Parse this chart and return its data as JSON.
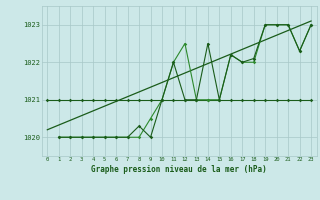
{
  "title": "Graphe pression niveau de la mer (hPa)",
  "bg_color": "#cce8e8",
  "grid_color": "#a8c8c8",
  "line_color_dark": "#1a5c1a",
  "line_color_mid": "#2d8a2d",
  "xlim": [
    -0.5,
    23.5
  ],
  "ylim": [
    1019.5,
    1023.5
  ],
  "yticks": [
    1020,
    1021,
    1022,
    1023
  ],
  "xticks": [
    0,
    1,
    2,
    3,
    4,
    5,
    6,
    7,
    8,
    9,
    10,
    11,
    12,
    13,
    14,
    15,
    16,
    17,
    18,
    19,
    20,
    21,
    22,
    23
  ],
  "series_flat_x": [
    0,
    1,
    2,
    3,
    4,
    5,
    6,
    7,
    8,
    9,
    10,
    11,
    12,
    13,
    14,
    15,
    16,
    17,
    18,
    19,
    20,
    21,
    22,
    23
  ],
  "series_flat_y": [
    1021,
    1021,
    1021,
    1021,
    1021,
    1021,
    1021,
    1021,
    1021,
    1021,
    1021,
    1021,
    1021,
    1021,
    1021,
    1021,
    1021,
    1021,
    1021,
    1021,
    1021,
    1021,
    1021,
    1021
  ],
  "series_volatile_x": [
    1,
    2,
    3,
    4,
    5,
    6,
    7,
    8,
    9,
    10,
    11,
    12,
    13,
    14,
    15,
    16,
    17,
    18,
    19,
    20,
    21,
    22,
    23
  ],
  "series_volatile_y": [
    1020,
    1020,
    1020,
    1020,
    1020,
    1020,
    1020,
    1020,
    1020.5,
    1021,
    1022,
    1022.5,
    1021,
    1021,
    1021,
    1022.2,
    1022,
    1022,
    1023,
    1023,
    1023,
    1022.3,
    1023
  ],
  "series_smooth_x": [
    1,
    2,
    3,
    4,
    5,
    6,
    7,
    8,
    9,
    10,
    11,
    12,
    13,
    14,
    15,
    16,
    17,
    18,
    19,
    20,
    21,
    22,
    23
  ],
  "series_smooth_y": [
    1020,
    1020,
    1020,
    1020,
    1020,
    1020,
    1020,
    1020.3,
    1020,
    1021,
    1022,
    1021,
    1021,
    1022.5,
    1021,
    1022.2,
    1022,
    1022.1,
    1023,
    1023,
    1023,
    1022.3,
    1023
  ],
  "trend_x": [
    0,
    23
  ],
  "trend_y": [
    1020.2,
    1023.1
  ]
}
